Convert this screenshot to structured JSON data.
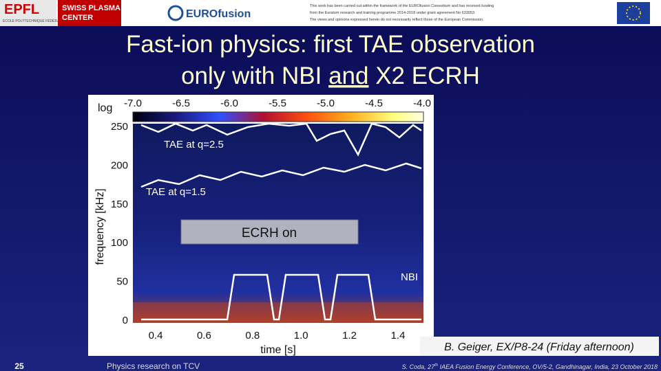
{
  "header": {
    "epfl": "EPFL",
    "epfl_subtitle": "ÉCOLE POLYTECHNIQUE FÉDÉRALE DE LAUSANNE",
    "spc": [
      "SWISS PLASMA",
      "CENTER"
    ],
    "eurofusion": "EUROfusion",
    "disclaimer": [
      "This work has been carried out within the framework of the EUROfusion Consortium and has received funding",
      "from the Euratom research and training programme 2014-2018 under grant agreement No 633053.",
      "The views and opinions expressed herein do not necessarily reflect those of the European Commission."
    ]
  },
  "title": {
    "line1": "Fast-ion physics: first TAE observation",
    "line2_pre": "only with NBI ",
    "line2_underlined": "and",
    "line2_post": " X2 ECRH"
  },
  "figure": {
    "colorbar_label": "log",
    "colorbar_ticks": [
      "-7.0",
      "-6.5",
      "-6.0",
      "-5.5",
      "-5.0",
      "-4.5",
      "-4.0"
    ],
    "y_label": "frequency [kHz]",
    "y_ticks": [
      "250",
      "200",
      "150",
      "100",
      "50",
      "0"
    ],
    "x_label": "time [s]",
    "x_ticks": [
      "0.4",
      "0.6",
      "0.8",
      "1.0",
      "1.2",
      "1.4"
    ],
    "annotations": [
      "TAE at q=2.5",
      "TAE at q=1.5",
      "NBI"
    ],
    "ecrh_box": "ECRH on"
  },
  "reference": "B. Geiger, EX/P8-24 (Friday afternoon)",
  "footer": {
    "page": "25",
    "section": "Physics research on TCV",
    "citation_pre": "S. Coda, 27",
    "citation_sup": "th",
    "citation_post": " IAEA Fusion Energy Conference, OV/5-2, Gandhinagar, India, 23 October 2018"
  }
}
